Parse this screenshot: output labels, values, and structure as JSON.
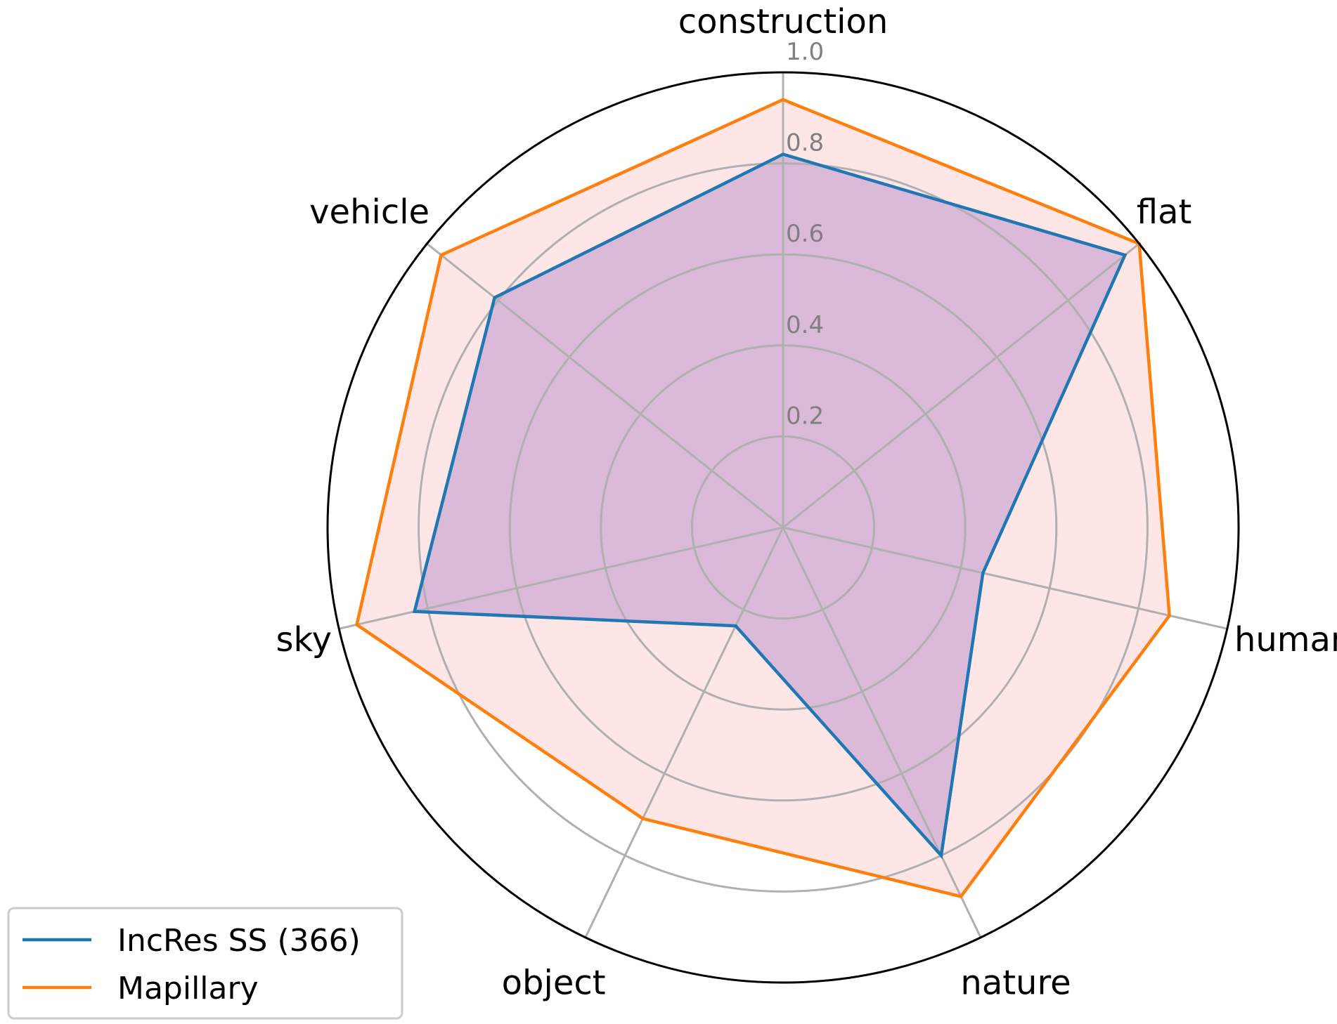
{
  "chart_data": {
    "type": "radar",
    "categories": [
      "construction",
      "flat",
      "human",
      "nature",
      "object",
      "sky",
      "vehicle"
    ],
    "rticks": [
      "0.2",
      "0.4",
      "0.6",
      "0.8",
      "1.0"
    ],
    "rlim": [
      0,
      1.0
    ],
    "grid": true,
    "legend_position": "bottom-left",
    "series": [
      {
        "name": "IncRes SS (366)",
        "values": [
          0.82,
          0.96,
          0.45,
          0.8,
          0.24,
          0.83,
          0.81
        ],
        "color": "#1f77b4",
        "fill": "#9467bd"
      },
      {
        "name": "Mapillary",
        "values": [
          0.94,
          1.0,
          0.87,
          0.9,
          0.71,
          0.96,
          0.96
        ],
        "color": "#ff7f0e",
        "fill": "#ffb6b6"
      }
    ]
  }
}
